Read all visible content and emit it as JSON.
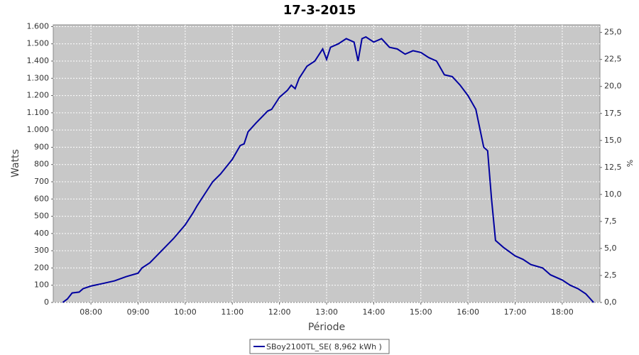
{
  "chart_data": {
    "type": "line",
    "title": "17-3-2015",
    "xlabel": "Période",
    "ylabel": "Watts",
    "y2label": "%",
    "x": [
      "07:24",
      "07:30",
      "07:36",
      "07:45",
      "07:50",
      "08:00",
      "08:15",
      "08:30",
      "08:45",
      "09:00",
      "09:05",
      "09:15",
      "09:30",
      "09:45",
      "10:00",
      "10:10",
      "10:15",
      "10:25",
      "10:35",
      "10:45",
      "11:00",
      "11:10",
      "11:15",
      "11:20",
      "11:30",
      "11:45",
      "11:50",
      "12:00",
      "12:10",
      "12:15",
      "12:20",
      "12:25",
      "12:35",
      "12:45",
      "12:55",
      "13:00",
      "13:05",
      "13:15",
      "13:25",
      "13:35",
      "13:40",
      "13:45",
      "13:50",
      "14:00",
      "14:10",
      "14:20",
      "14:30",
      "14:40",
      "14:50",
      "15:00",
      "15:10",
      "15:20",
      "15:30",
      "15:40",
      "15:50",
      "16:00",
      "16:10",
      "16:20",
      "16:25",
      "16:30",
      "16:35",
      "16:45",
      "17:00",
      "17:10",
      "17:20",
      "17:35",
      "17:45",
      "18:00",
      "18:10",
      "18:20",
      "18:30",
      "18:40"
    ],
    "series": [
      {
        "name": "SBoy2100TL_SE( 8,962 kWh )",
        "color": "#0000a0",
        "values": [
          0,
          20,
          55,
          60,
          80,
          95,
          110,
          125,
          150,
          170,
          200,
          230,
          300,
          370,
          450,
          520,
          560,
          630,
          700,
          745,
          830,
          910,
          920,
          990,
          1040,
          1110,
          1120,
          1190,
          1230,
          1260,
          1240,
          1300,
          1370,
          1400,
          1470,
          1410,
          1480,
          1500,
          1530,
          1510,
          1400,
          1530,
          1540,
          1510,
          1530,
          1480,
          1470,
          1440,
          1460,
          1450,
          1420,
          1400,
          1320,
          1310,
          1260,
          1200,
          1120,
          900,
          880,
          600,
          360,
          320,
          270,
          250,
          220,
          200,
          160,
          130,
          100,
          80,
          50,
          0
        ]
      }
    ],
    "xlim": [
      "07:12",
      "18:48"
    ],
    "xticks": [
      "08:00",
      "09:00",
      "10:00",
      "11:00",
      "12:00",
      "13:00",
      "14:00",
      "15:00",
      "16:00",
      "17:00",
      "18:00"
    ],
    "ylim": [
      0,
      1610
    ],
    "yticks": [
      0,
      100,
      200,
      300,
      400,
      500,
      600,
      700,
      800,
      900,
      {
        "value": 1000,
        "label": "1.000"
      },
      {
        "value": 1100,
        "label": "1.100"
      },
      {
        "value": 1200,
        "label": "1.200"
      },
      {
        "value": 1300,
        "label": "1.300"
      },
      {
        "value": 1400,
        "label": "1.400"
      },
      {
        "value": 1500,
        "label": "1.500"
      },
      {
        "value": 1600,
        "label": "1.600"
      }
    ],
    "y2lim": [
      0,
      25.7
    ],
    "y2ticks": [
      {
        "value": 0,
        "label": "0,0"
      },
      {
        "value": 2.5,
        "label": "2,5"
      },
      {
        "value": 5,
        "label": "5,0"
      },
      {
        "value": 7.5,
        "label": "7,5"
      },
      {
        "value": 10,
        "label": "10,0"
      },
      {
        "value": 12.5,
        "label": "12,5"
      },
      {
        "value": 15,
        "label": "15,0"
      },
      {
        "value": 17.5,
        "label": "17,5"
      },
      {
        "value": 20,
        "label": "20,0"
      },
      {
        "value": 22.5,
        "label": "22,5"
      },
      {
        "value": 25,
        "label": "25,0"
      }
    ],
    "grid": true
  }
}
